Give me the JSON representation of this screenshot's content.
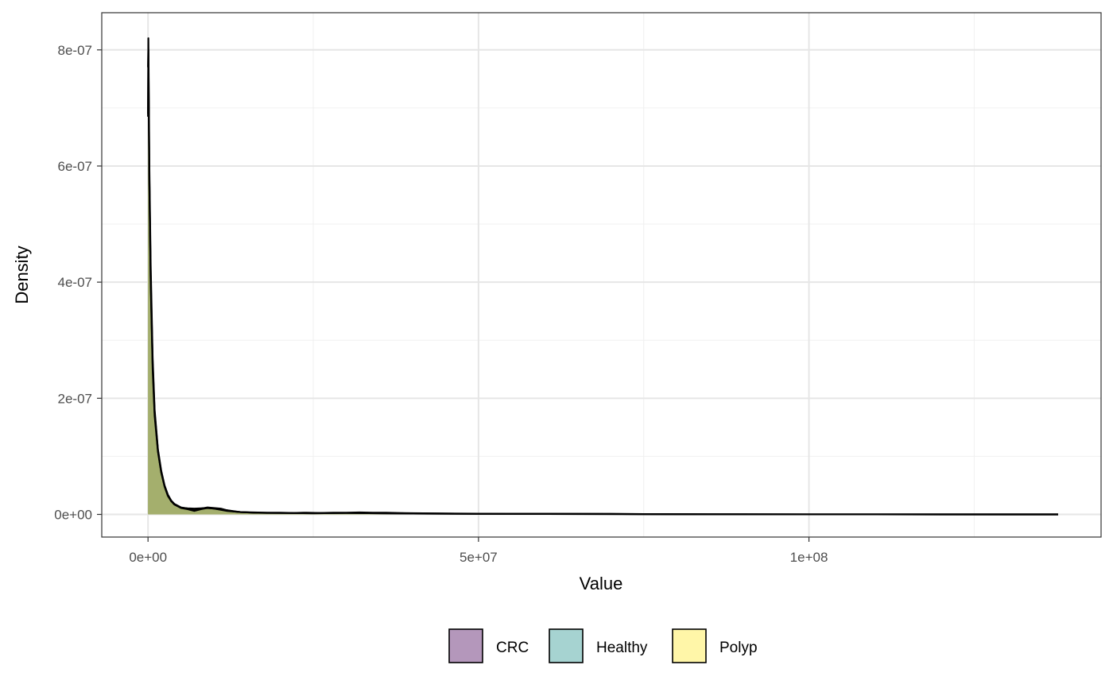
{
  "chart_data": {
    "type": "area",
    "xlabel": "Value",
    "ylabel": "Density",
    "x_ticks": [
      {
        "value": 0,
        "label": "0e+00"
      },
      {
        "value": 50000000,
        "label": "5e+07"
      },
      {
        "value": 100000000,
        "label": "1e+08"
      }
    ],
    "y_ticks": [
      {
        "value": 0,
        "label": "0e+00"
      },
      {
        "value": 2e-07,
        "label": "2e-07"
      },
      {
        "value": 4e-07,
        "label": "4e-07"
      },
      {
        "value": 6e-07,
        "label": "6e-07"
      },
      {
        "value": 8e-07,
        "label": "8e-07"
      }
    ],
    "xlim": [
      -7000000,
      144200000
    ],
    "ylim": [
      -3.9e-08,
      8.64e-07
    ],
    "grid": true,
    "legend_position": "bottom",
    "legend": [
      {
        "name": "CRC",
        "color": "#B497BB"
      },
      {
        "name": "Healthy",
        "color": "#A6D3D1"
      },
      {
        "name": "Polyp",
        "color": "#FFF6A8"
      }
    ],
    "series": [
      {
        "name": "CRC",
        "fill": "#9AA85E",
        "x": [
          0,
          50000,
          100000,
          200000,
          400000,
          700000,
          1000000,
          1500000,
          2000000,
          2500000,
          3000000,
          3500000,
          4000000,
          5000000,
          6000000,
          7000000,
          8000000,
          9000000,
          10000000,
          11000000,
          12000000,
          13000000,
          14000000,
          16000000,
          18000000,
          20000000,
          22000000,
          24000000,
          26000000,
          28000000,
          30000000,
          32000000,
          34000000,
          36000000,
          38000000,
          40000000,
          45000000,
          50000000,
          55000000,
          60000000,
          65000000,
          70000000,
          75000000,
          80000000,
          90000000,
          100000000,
          110000000,
          120000000,
          130000000,
          137700000
        ],
        "y": [
          6.85e-07,
          8.2e-07,
          7.5e-07,
          6e-07,
          4.3e-07,
          2.7e-07,
          1.8e-07,
          1.12e-07,
          7.5e-08,
          5e-08,
          3.4e-08,
          2.4e-08,
          1.8e-08,
          1.2e-08,
          1e-08,
          9e-09,
          1e-08,
          1.2e-08,
          1.1e-08,
          1e-08,
          7e-09,
          5e-09,
          4e-09,
          3.5e-09,
          3e-09,
          3e-09,
          2.5e-09,
          3e-09,
          2.5e-09,
          3e-09,
          3e-09,
          3.5e-09,
          3e-09,
          3e-09,
          2.5e-09,
          2e-09,
          1.5e-09,
          1.3e-09,
          1e-09,
          1e-09,
          1e-09,
          1e-09,
          5e-10,
          3e-10,
          2e-10,
          1e-10,
          5e-11,
          3e-11,
          1e-11,
          0
        ]
      },
      {
        "name": "Healthy",
        "fill": "#9AA85E",
        "x": [
          0,
          50000,
          100000,
          200000,
          400000,
          700000,
          1000000,
          1500000,
          2000000,
          2500000,
          3000000,
          3500000,
          4000000,
          5000000,
          6000000,
          7000000,
          8000000,
          9000000,
          10000000,
          12000000,
          14000000,
          16000000,
          18000000,
          20000000,
          25000000,
          30000000,
          35000000,
          40000000,
          50000000,
          60000000,
          70000000,
          80000000,
          100000000,
          120000000,
          137700000
        ],
        "y": [
          7.7e-07,
          8e-07,
          7.3e-07,
          5.8e-07,
          4.1e-07,
          2.6e-07,
          1.75e-07,
          1.1e-07,
          7.3e-08,
          4.9e-08,
          3.3e-08,
          2.3e-08,
          1.7e-08,
          1.1e-08,
          9e-09,
          6e-09,
          9e-09,
          1.1e-08,
          1e-08,
          7e-09,
          4e-09,
          3e-09,
          2.5e-09,
          2.5e-09,
          2e-09,
          2.5e-09,
          2e-09,
          1.5e-09,
          1e-09,
          8e-10,
          6e-10,
          3e-10,
          1e-10,
          3e-11,
          0
        ]
      },
      {
        "name": "Polyp",
        "fill": "#9AA85E",
        "x": [
          0,
          50000,
          100000,
          200000,
          400000,
          700000,
          1000000,
          1500000,
          2000000,
          2500000,
          3000000,
          3500000,
          4000000,
          5000000,
          6000000,
          7000000,
          8000000,
          9000000,
          10000000,
          12000000,
          14000000,
          16000000,
          20000000,
          25000000,
          30000000,
          35000000,
          40000000,
          50000000,
          60000000,
          80000000,
          100000000,
          137700000
        ],
        "y": [
          6.9e-07,
          7.7e-07,
          7.1e-07,
          5.7e-07,
          4e-07,
          2.5e-07,
          1.7e-07,
          1.08e-07,
          7.2e-08,
          4.8e-08,
          3.2e-08,
          2.3e-08,
          1.7e-08,
          1.15e-08,
          1.05e-08,
          1e-08,
          1.05e-08,
          1.1e-08,
          1e-08,
          6e-09,
          4e-09,
          3e-09,
          2.5e-09,
          2e-09,
          2.5e-09,
          2e-09,
          1.5e-09,
          1e-09,
          8e-10,
          3e-10,
          1e-10,
          0
        ]
      }
    ]
  }
}
